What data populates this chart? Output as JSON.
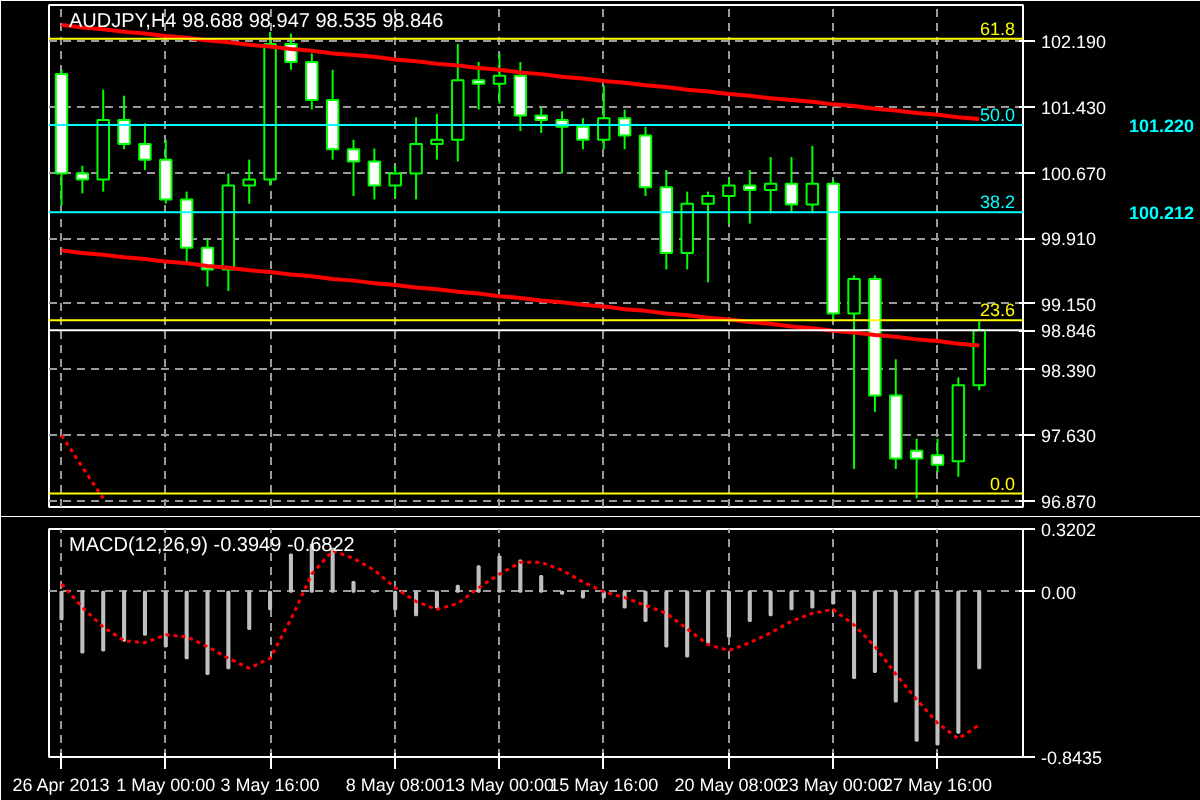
{
  "chart_data": [
    {
      "type": "candlestick",
      "title": "AUDJPY,H4  98.688 98.947 98.535 98.846",
      "color": "#00ff00",
      "categories": [
        null,
        null,
        null,
        null,
        null,
        null,
        null,
        null,
        null,
        null,
        null,
        null,
        null,
        null,
        null,
        null,
        null,
        null,
        null,
        null,
        null,
        null,
        null,
        null,
        null,
        null,
        null,
        null,
        null,
        null,
        null,
        null,
        null,
        null,
        null,
        null,
        null,
        null,
        null,
        null,
        null,
        null,
        null,
        null,
        null
      ],
      "ohlc": [
        [
          101.81,
          101.86,
          100.29,
          100.66
        ],
        [
          100.66,
          100.75,
          100.43,
          100.59
        ],
        [
          100.59,
          101.63,
          100.45,
          101.28
        ],
        [
          101.28,
          101.56,
          100.94,
          101.0
        ],
        [
          101.0,
          101.24,
          100.7,
          100.82
        ],
        [
          100.82,
          101.05,
          100.31,
          100.36
        ],
        [
          100.36,
          100.45,
          99.6,
          99.8
        ],
        [
          99.8,
          99.9,
          99.35,
          99.55
        ],
        [
          99.55,
          100.66,
          99.3,
          100.52
        ],
        [
          100.52,
          100.82,
          100.31,
          100.59
        ],
        [
          100.59,
          102.3,
          100.52,
          102.16
        ],
        [
          102.16,
          102.28,
          101.86,
          101.95
        ],
        [
          101.95,
          102.05,
          101.4,
          101.51
        ],
        [
          101.51,
          101.86,
          100.82,
          100.94
        ],
        [
          100.94,
          101.05,
          100.4,
          100.8
        ],
        [
          100.8,
          100.95,
          100.36,
          100.52
        ],
        [
          100.52,
          100.75,
          100.38,
          100.66
        ],
        [
          100.66,
          101.31,
          100.36,
          101.0
        ],
        [
          101.0,
          101.35,
          100.82,
          101.05
        ],
        [
          101.05,
          102.16,
          100.8,
          101.74
        ],
        [
          101.74,
          101.95,
          101.4,
          101.7
        ],
        [
          101.7,
          102.05,
          101.47,
          101.79
        ],
        [
          101.79,
          101.95,
          101.15,
          101.33
        ],
        [
          101.33,
          101.42,
          101.13,
          101.28
        ],
        [
          101.28,
          101.38,
          100.66,
          101.2
        ],
        [
          101.2,
          101.3,
          100.94,
          101.05
        ],
        [
          101.05,
          101.68,
          100.94,
          101.3
        ],
        [
          101.3,
          101.4,
          100.94,
          101.1
        ],
        [
          101.1,
          101.2,
          100.4,
          100.5
        ],
        [
          100.5,
          100.7,
          99.55,
          99.74
        ],
        [
          99.74,
          100.45,
          99.55,
          100.31
        ],
        [
          100.31,
          100.45,
          99.4,
          100.4
        ],
        [
          100.4,
          100.6,
          100.08,
          100.52
        ],
        [
          100.52,
          100.7,
          100.08,
          100.47
        ],
        [
          100.47,
          100.85,
          100.2,
          100.54
        ],
        [
          100.54,
          100.85,
          100.2,
          100.3
        ],
        [
          100.3,
          100.98,
          100.2,
          100.54
        ],
        [
          100.54,
          100.59,
          98.95,
          99.04
        ],
        [
          99.04,
          99.48,
          97.24,
          99.44
        ],
        [
          99.44,
          99.48,
          97.9,
          98.09
        ],
        [
          98.09,
          98.51,
          97.24,
          97.36
        ],
        [
          97.45,
          97.59,
          96.9,
          97.36
        ],
        [
          97.4,
          97.59,
          97.2,
          97.29
        ],
        [
          97.33,
          98.3,
          97.15,
          98.21
        ],
        [
          98.21,
          98.95,
          98.15,
          98.846
        ]
      ],
      "colors": [
        "#ffffff",
        "#ffffff",
        "#000000",
        "#ffffff",
        "#ffffff",
        "#ffffff",
        "#ffffff",
        "#ffffff",
        "#000000",
        "#000000",
        "#000000",
        "#ffffff",
        "#ffffff",
        "#ffffff",
        "#ffffff",
        "#ffffff",
        "#000000",
        "#000000",
        "#000000",
        "#000000",
        "#ffffff",
        "#000000",
        "#ffffff",
        "#ffffff",
        "#ffffff",
        "#ffffff",
        "#000000",
        "#ffffff",
        "#ffffff",
        "#ffffff",
        "#000000",
        "#000000",
        "#000000",
        "#ffffff",
        "#000000",
        "#ffffff",
        "#000000",
        "#ffffff",
        "#000000",
        "#ffffff",
        "#ffffff",
        "#ffffff",
        "#ffffff",
        "#000000",
        "#000000"
      ],
      "series": [
        {
          "type": "line",
          "color": "#ff0000",
          "values": [
            102.38,
            102.35,
            102.33,
            102.3,
            102.28,
            102.25,
            102.23,
            102.2,
            102.18,
            102.15,
            102.13,
            102.1,
            102.08,
            102.05,
            102.03,
            102.01,
            101.98,
            101.96,
            101.93,
            101.91,
            101.88,
            101.86,
            101.83,
            101.81,
            101.78,
            101.76,
            101.73,
            101.71,
            101.68,
            101.66,
            101.63,
            101.61,
            101.58,
            101.56,
            101.53,
            101.51,
            101.49,
            101.46,
            101.44,
            101.41,
            101.39,
            101.36,
            101.34,
            101.31,
            101.29
          ]
        },
        {
          "type": "line",
          "color": "#ff0000",
          "values": [
            99.77,
            99.74,
            99.72,
            99.69,
            99.67,
            99.64,
            99.62,
            99.59,
            99.57,
            99.54,
            99.52,
            99.49,
            99.47,
            99.44,
            99.42,
            99.39,
            99.37,
            99.34,
            99.32,
            99.29,
            99.27,
            99.24,
            99.22,
            99.19,
            99.17,
            99.14,
            99.12,
            99.09,
            99.07,
            99.04,
            99.02,
            98.99,
            98.97,
            98.94,
            98.92,
            98.89,
            98.87,
            98.84,
            98.82,
            98.79,
            98.77,
            98.74,
            98.72,
            98.69,
            98.67
          ]
        },
        {
          "type": "line",
          "color": "#ff0000",
          "line_style": "dotted",
          "values": [
            97.63,
            97.26,
            96.9,
            null,
            null,
            null,
            null,
            null,
            null,
            null,
            null,
            null,
            null,
            null,
            null,
            null,
            null,
            null,
            null,
            null,
            null,
            null,
            null,
            null,
            null,
            null,
            null,
            null,
            null,
            null,
            null,
            null,
            null,
            null,
            null,
            null,
            null,
            null,
            null,
            null,
            null,
            null,
            null,
            null,
            null
          ]
        }
      ],
      "ylim": [
        96.8,
        102.61
      ],
      "yticks": [
        {
          "value": 102.19,
          "label": "102.190"
        },
        {
          "value": 101.43,
          "label": "101.430"
        },
        {
          "value": 100.67,
          "label": "100.670"
        },
        {
          "value": 99.91,
          "label": "99.910"
        },
        {
          "value": 99.15,
          "label": "99.150"
        },
        {
          "value": 98.39,
          "label": "98.390"
        },
        {
          "value": 97.63,
          "label": "97.630"
        },
        {
          "value": 96.87,
          "label": "96.870"
        }
      ],
      "ref_lines": [
        {
          "axis": "y",
          "value": 102.22,
          "color": "#ffff00"
        },
        {
          "axis": "y",
          "value": 101.22,
          "label": "101.220",
          "color": "#00ffff"
        },
        {
          "axis": "y",
          "value": 100.212,
          "label": "100.212",
          "color": "#00ffff"
        },
        {
          "axis": "y",
          "value": 98.96,
          "color": "#ffff00"
        },
        {
          "axis": "y",
          "value": 98.846,
          "label": "98.846",
          "color": "#ffffff"
        },
        {
          "axis": "y",
          "value": 96.955,
          "color": "#ffff00"
        }
      ],
      "annotations": [
        {
          "text": "61.8",
          "y": 102.22
        },
        {
          "text": "50.0",
          "y": 101.22
        },
        {
          "text": "38.2",
          "y": 100.212
        },
        {
          "text": "23.6",
          "y": 98.96
        },
        {
          "text": "0.0",
          "y": 96.955
        }
      ],
      "grid": true,
      "tick_labels": "y"
    },
    {
      "type": "bar",
      "title": "MACD(12,26,9) -0.3949 -0.6822",
      "categories": [
        "26 Apr 2013",
        null,
        null,
        null,
        null,
        "1 May 00:00",
        null,
        null,
        null,
        null,
        "3 May 16:00",
        null,
        null,
        null,
        null,
        null,
        "8 May 08:00",
        null,
        null,
        null,
        null,
        "13 May 00:00",
        null,
        null,
        null,
        null,
        "15 May 16:00",
        null,
        null,
        null,
        null,
        null,
        "20 May 08:00",
        null,
        null,
        null,
        null,
        "23 May 00:00",
        null,
        null,
        null,
        null,
        "27 May 16:00",
        null,
        null
      ],
      "series": [
        {
          "type": "bar",
          "color": "#c0c0c0",
          "values": [
            -0.14,
            -0.31,
            -0.3,
            -0.25,
            -0.22,
            -0.28,
            -0.34,
            -0.42,
            -0.39,
            -0.19,
            -0.09,
            0.19,
            0.24,
            0.22,
            0.05,
            0.0,
            -0.09,
            -0.12,
            -0.08,
            0.03,
            0.13,
            0.18,
            0.16,
            0.08,
            -0.01,
            -0.03,
            -0.03,
            -0.08,
            -0.15,
            -0.28,
            -0.33,
            -0.26,
            -0.23,
            -0.15,
            -0.12,
            -0.09,
            -0.08,
            -0.06,
            -0.44,
            -0.41,
            -0.56,
            -0.76,
            -0.78,
            -0.72,
            -0.39
          ]
        },
        {
          "type": "line",
          "color": "#ff0000",
          "line_style": "dotted",
          "values": [
            0.04,
            -0.08,
            -0.18,
            -0.25,
            -0.26,
            -0.22,
            -0.23,
            -0.28,
            -0.34,
            -0.39,
            -0.34,
            -0.14,
            0.09,
            0.21,
            0.17,
            0.11,
            0.02,
            -0.05,
            -0.09,
            -0.06,
            0.02,
            0.09,
            0.15,
            0.15,
            0.11,
            0.05,
            0.0,
            -0.03,
            -0.07,
            -0.11,
            -0.19,
            -0.27,
            -0.3,
            -0.26,
            -0.21,
            -0.15,
            -0.11,
            -0.09,
            -0.17,
            -0.28,
            -0.42,
            -0.55,
            -0.67,
            -0.75,
            -0.68
          ]
        }
      ],
      "ylim": [
        -0.8435,
        0.3202
      ],
      "yticks": [
        0.3202,
        {
          "value": 0,
          "label": "0.00"
        },
        -0.8435
      ],
      "grid": true
    }
  ]
}
